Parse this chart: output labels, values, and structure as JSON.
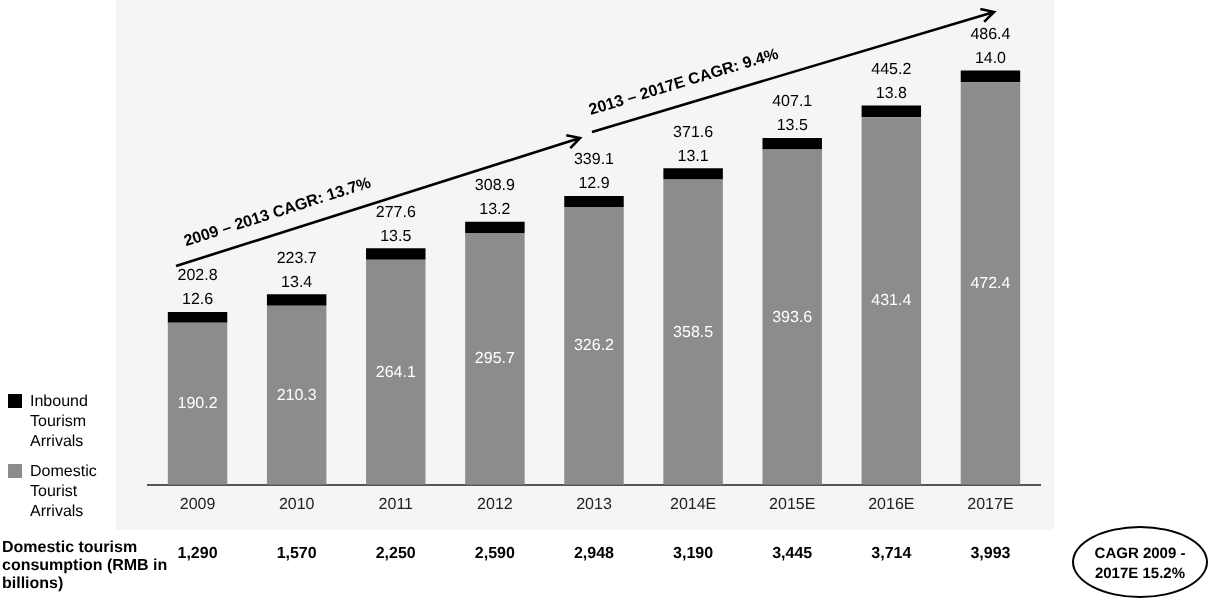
{
  "chart_data": {
    "type": "bar",
    "stacked": true,
    "legend": "left",
    "grid": false,
    "categories": [
      "2009",
      "2010",
      "2011",
      "2012",
      "2013",
      "2014E",
      "2015E",
      "2016E",
      "2017E"
    ],
    "series": [
      {
        "name": "Domestic Tourist Arrivals",
        "color": "#8c8c8c",
        "values": [
          190.2,
          210.3,
          264.1,
          295.7,
          326.2,
          358.5,
          393.6,
          431.4,
          472.4
        ],
        "value_labels": [
          "190.2",
          "210.3",
          "264.1",
          "295.7",
          "326.2",
          "358.5",
          "393.6",
          "431.4",
          "472.4"
        ]
      },
      {
        "name": "Inbound Tourism Arrivals",
        "color": "#000000",
        "values": [
          12.6,
          13.4,
          13.5,
          13.2,
          12.9,
          13.1,
          13.5,
          13.8,
          14.0
        ],
        "value_labels": [
          "12.6",
          "13.4",
          "13.5",
          "13.2",
          "12.9",
          "13.1",
          "13.5",
          "13.8",
          "14.0"
        ]
      }
    ],
    "totals": [
      "202.8",
      "223.7",
      "277.6",
      "308.9",
      "339.1",
      "371.6",
      "407.1",
      "445.2",
      "486.4"
    ],
    "annotations": [
      "Domestic tourism consumption (RMB in billions)",
      "2009 – 2013 CAGR: 13.7%",
      "2013 – 2017E CAGR: 9.4%",
      "CAGR 2009 - 2017E 15.2%",
      "1,290",
      "1,570",
      "2,250",
      "2,590",
      "2,948",
      "3,190",
      "3,445",
      "3,714",
      "3,993"
    ]
  }
}
